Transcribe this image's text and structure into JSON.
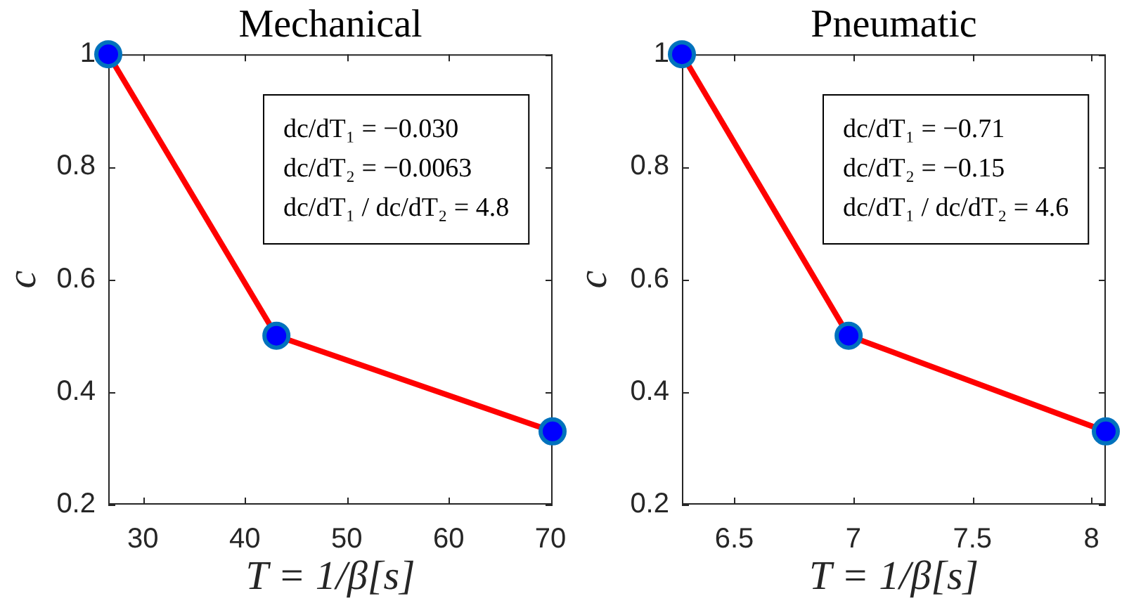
{
  "chart_data": [
    {
      "type": "line",
      "title": "Mechanical",
      "xlabel": "T = 1/β[s]",
      "ylabel": "c",
      "x": [
        26.6,
        43.1,
        70.2
      ],
      "values": [
        1,
        0.5,
        0.33
      ],
      "color": "#ff0000",
      "colors": [
        "#0000ff",
        "#0000ff",
        "#0000ff"
      ],
      "marker": "circle",
      "line_style": "solid",
      "xlim": [
        26.6,
        70.2
      ],
      "ylim": [
        0.2,
        1
      ],
      "xticks": [
        30,
        40,
        50,
        60,
        70
      ],
      "yticks": [
        0.2,
        0.4,
        0.6,
        0.8,
        1
      ],
      "annotations": [
        "dc/dT₁ = −0.030",
        "dc/dT₂ = −0.0063",
        "dc/dT₁ / dc/dT₂ = 4.8"
      ]
    },
    {
      "type": "line",
      "title": "Pneumatic",
      "xlabel": "T = 1/β[s]",
      "ylabel": "c",
      "x": [
        6.28,
        6.98,
        8.06
      ],
      "values": [
        1,
        0.5,
        0.33
      ],
      "color": "#ff0000",
      "colors": [
        "#0000ff",
        "#0000ff",
        "#0000ff"
      ],
      "marker": "circle",
      "line_style": "solid",
      "xlim": [
        6.28,
        8.06
      ],
      "ylim": [
        0.2,
        1
      ],
      "xticks": [
        6.5,
        7,
        7.5,
        8
      ],
      "yticks": [
        0.2,
        0.4,
        0.6,
        0.8,
        1
      ],
      "annotations": [
        "dc/dT₁ = −0.71",
        "dc/dT₂ = −0.15",
        "dc/dT₁ / dc/dT₂ = 4.6"
      ]
    }
  ]
}
